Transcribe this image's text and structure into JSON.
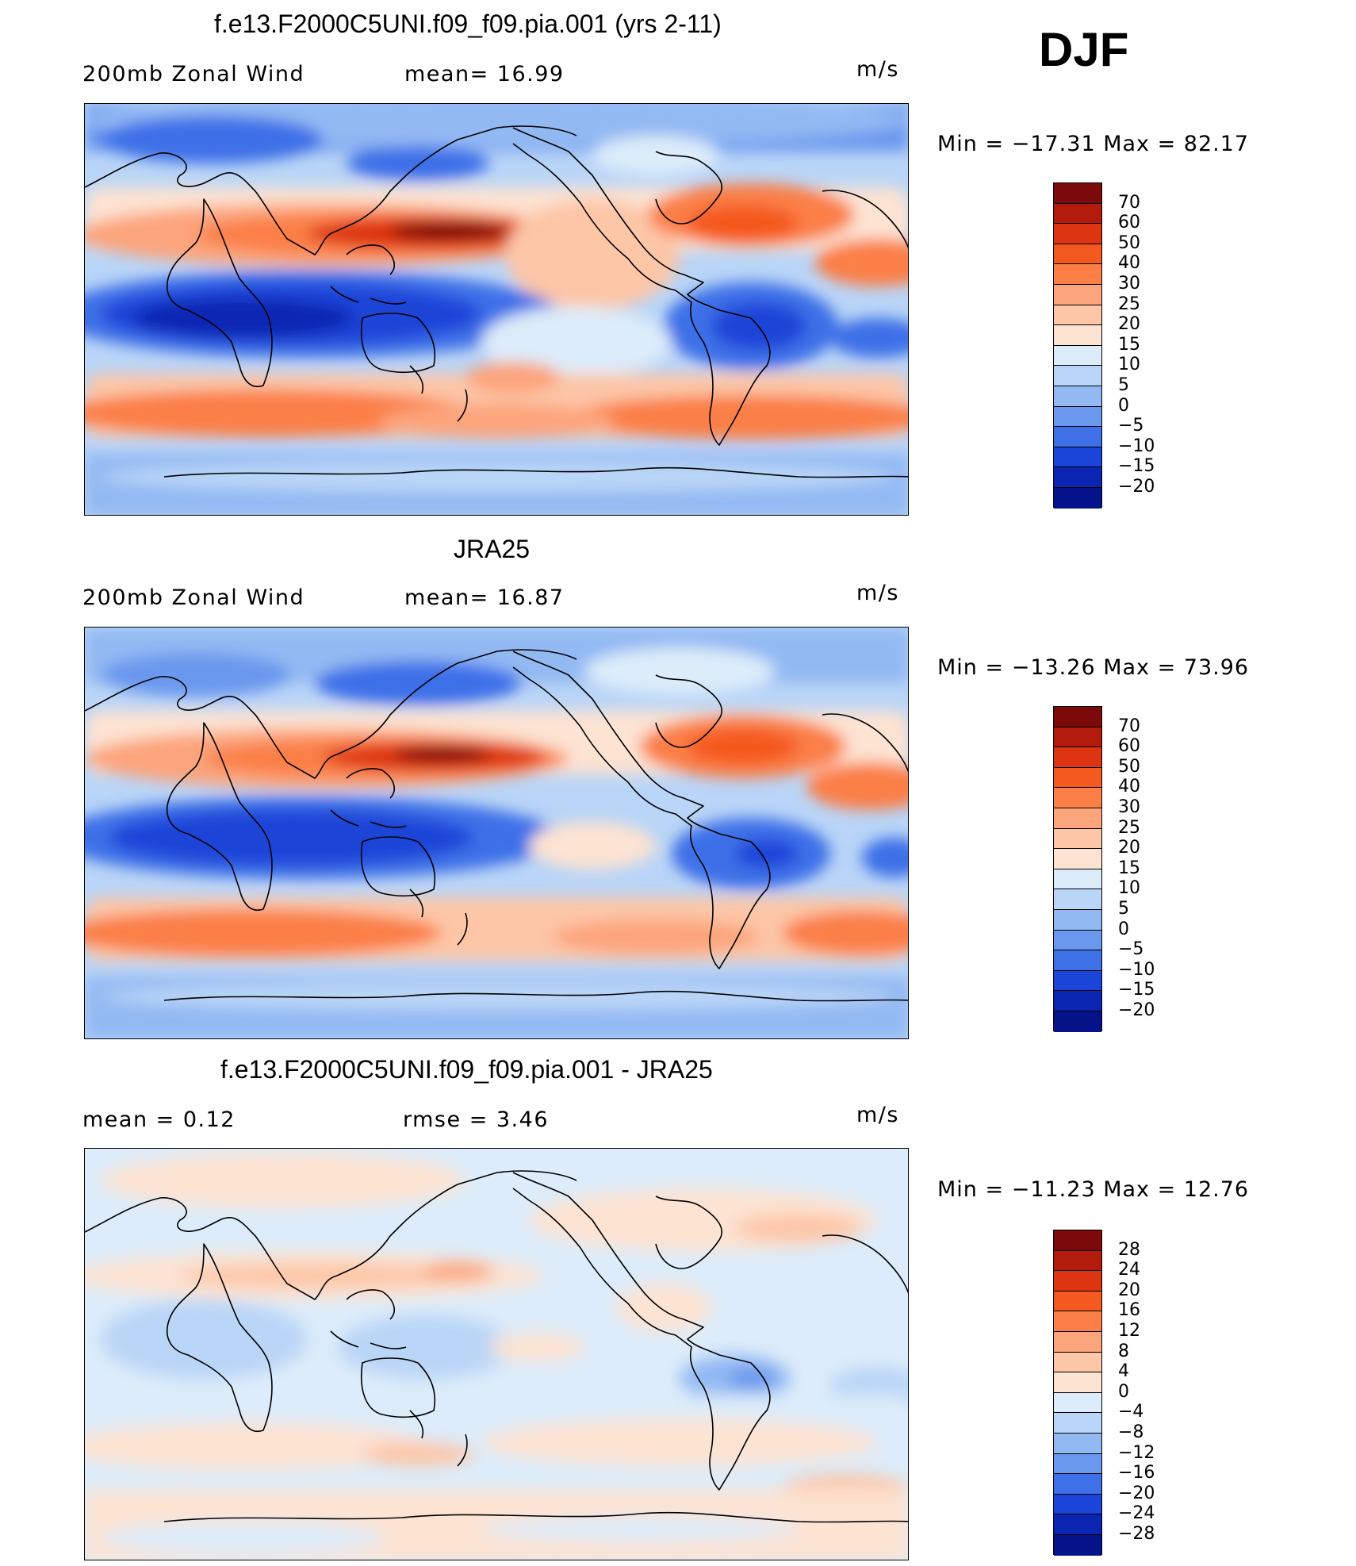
{
  "season": "DJF",
  "panels": [
    {
      "title": "f.e13.F2000C5UNI.f09_f09.pia.001 (yrs 2-11)",
      "left_label": "200mb Zonal Wind",
      "mid_label": "mean=   16.99",
      "units": "m/s",
      "min_max": "Min  =  −17.31  Max  =    82.17",
      "levels": [
        "70",
        "60",
        "50",
        "40",
        "30",
        "25",
        "20",
        "15",
        "10",
        "5",
        "0",
        "−5",
        "−10",
        "−15",
        "−20"
      ],
      "colors": [
        "#7d0a0a",
        "#b31b0c",
        "#dd3511",
        "#f4591f",
        "#fb7f47",
        "#fca47c",
        "#fdc6a7",
        "#fde3d2",
        "#dcecfa",
        "#b9d5f7",
        "#93b9f3",
        "#6a98ee",
        "#3e70e8",
        "#1a45d8",
        "#0b25b3",
        "#06128a"
      ]
    },
    {
      "title": "JRA25",
      "left_label": "200mb Zonal Wind",
      "mid_label": "mean=   16.87",
      "units": "m/s",
      "min_max": "Min  =  −13.26  Max  =    73.96",
      "levels": [
        "70",
        "60",
        "50",
        "40",
        "30",
        "25",
        "20",
        "15",
        "10",
        "5",
        "0",
        "−5",
        "−10",
        "−15",
        "−20"
      ],
      "colors": [
        "#7d0a0a",
        "#b31b0c",
        "#dd3511",
        "#f4591f",
        "#fb7f47",
        "#fca47c",
        "#fdc6a7",
        "#fde3d2",
        "#dcecfa",
        "#b9d5f7",
        "#93b9f3",
        "#6a98ee",
        "#3e70e8",
        "#1a45d8",
        "#0b25b3",
        "#06128a"
      ]
    },
    {
      "title": "f.e13.F2000C5UNI.f09_f09.pia.001 - JRA25",
      "left_label": "mean  =     0.12",
      "mid_label": "rmse  =     3.46",
      "units": "m/s",
      "min_max": "Min  =  −11.23  Max  =    12.76",
      "levels": [
        "28",
        "24",
        "20",
        "16",
        "12",
        "8",
        "4",
        "0",
        "−4",
        "−8",
        "−12",
        "−16",
        "−20",
        "−24",
        "−28"
      ],
      "colors": [
        "#7d0a0a",
        "#b31b0c",
        "#dd3511",
        "#f4591f",
        "#fb7f47",
        "#fca47c",
        "#fdc6a7",
        "#fde3d2",
        "#dcecfa",
        "#b9d5f7",
        "#93b9f3",
        "#6a98ee",
        "#3e70e8",
        "#1a45d8",
        "#0b25b3",
        "#06128a"
      ]
    }
  ]
}
